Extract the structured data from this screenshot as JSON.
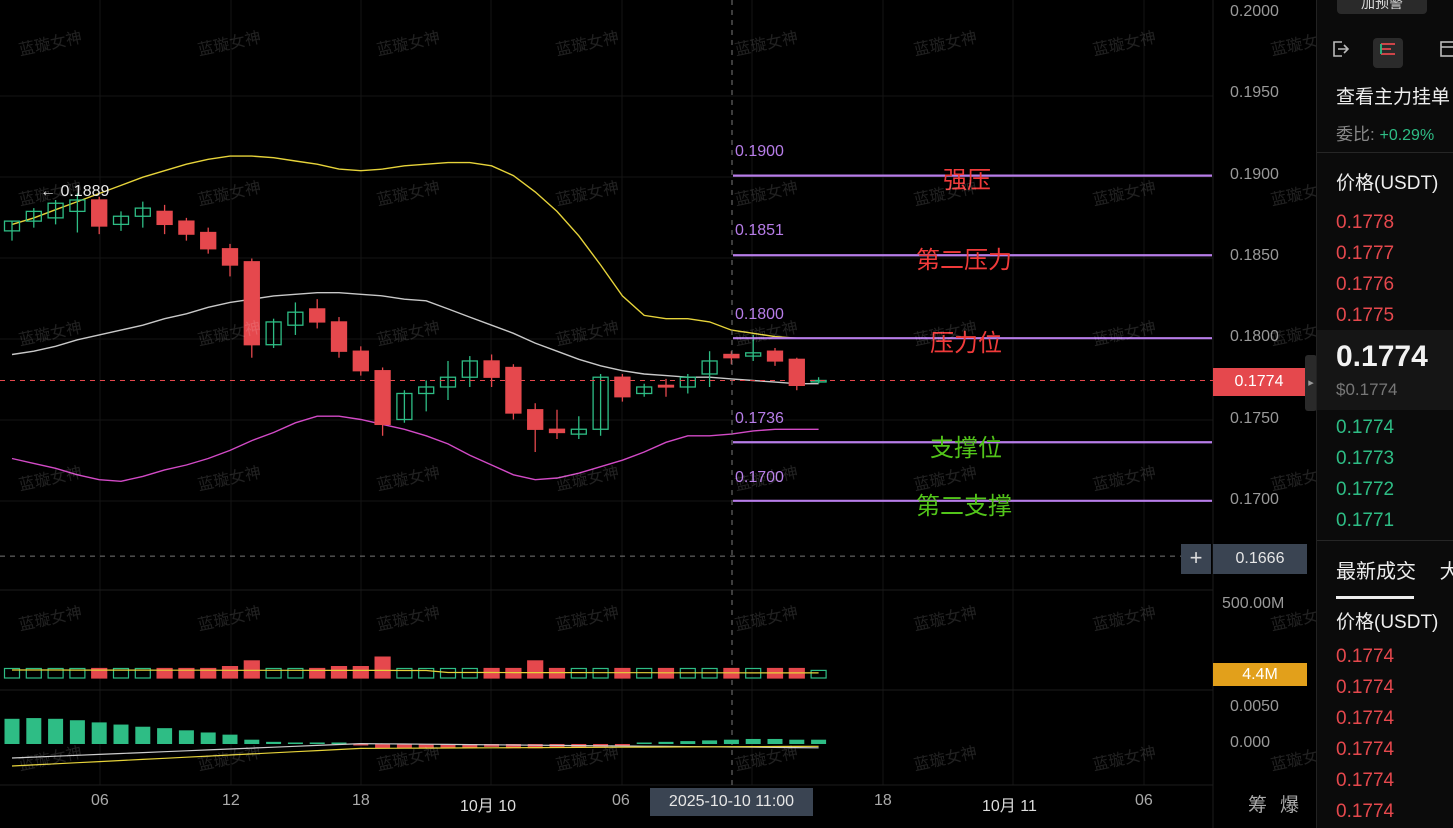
{
  "watermark": "蓝璇女神",
  "right_panel": {
    "top_button": "加预警",
    "icons": [
      "exit-icon",
      "orderbook-icon",
      "layout-icon"
    ],
    "title": "查看主力挂单",
    "ratio_label": "委比:",
    "ratio_value": "+0.29%",
    "price_header": "价格(USDT)",
    "asks": [
      "0.1778",
      "0.1777",
      "0.1776",
      "0.1775"
    ],
    "last_price": "0.1774",
    "last_price_usd": "$0.1774",
    "bids": [
      "0.1774",
      "0.1773",
      "0.1772",
      "0.1771"
    ],
    "tab_latest": "最新成交",
    "tab_more": "大",
    "trades_header": "价格(USDT)",
    "trades": [
      "0.1774",
      "0.1774",
      "0.1774",
      "0.1774",
      "0.1774",
      "0.1774"
    ]
  },
  "axes": {
    "price_ticks": [
      "0.2000",
      "0.1950",
      "0.1900",
      "0.1850",
      "0.1800",
      "0.1750",
      "0.1700"
    ],
    "current_price": "0.1774",
    "crosshair_price": "0.1666",
    "volume_max": "500.00M",
    "volume_value": "4.4M",
    "macd_ticks": [
      "0.0050",
      "0.000"
    ],
    "x_ticks": [
      "06",
      "12",
      "18",
      "10月 10",
      "06",
      "18",
      "10月 11",
      "06"
    ],
    "crosshair_time": "2025-10-10 11:00",
    "bottom_right": [
      "筹",
      "爆"
    ]
  },
  "annotations": {
    "high_marker": "← 0.1889",
    "levels": [
      {
        "price": "0.1900",
        "name": "强压",
        "kind": "resistance"
      },
      {
        "price": "0.1851",
        "name": "第二压力",
        "kind": "resistance"
      },
      {
        "price": "0.1800",
        "name": "压力位",
        "kind": "resistance"
      },
      {
        "price": "0.1736",
        "name": "支撑位",
        "kind": "support"
      },
      {
        "price": "0.1700",
        "name": "第二支撑",
        "kind": "support"
      }
    ]
  },
  "colors": {
    "up": "#2ebd85",
    "down": "#e5484d",
    "level_line": "#b77de8",
    "resistance_text": "#f03a3a",
    "support_text": "#52c41a",
    "boll_upper": "#e6d33a",
    "boll_mid": "#c8c8c8",
    "boll_lower": "#d24ac6",
    "price_tag": "#e5484d",
    "volume_tag": "#e2a01b"
  },
  "chart_data": {
    "type": "candlestick",
    "candles": [
      {
        "o": 0.1866,
        "h": 0.1872,
        "c": 0.1872,
        "l": 0.186
      },
      {
        "o": 0.1872,
        "h": 0.188,
        "c": 0.1878,
        "l": 0.1868
      },
      {
        "o": 0.1874,
        "h": 0.1885,
        "c": 0.1883,
        "l": 0.187
      },
      {
        "o": 0.1878,
        "h": 0.1889,
        "c": 0.1885,
        "l": 0.1865
      },
      {
        "o": 0.1885,
        "h": 0.1887,
        "c": 0.1869,
        "l": 0.1864
      },
      {
        "o": 0.187,
        "h": 0.1878,
        "c": 0.1875,
        "l": 0.1866
      },
      {
        "o": 0.1875,
        "h": 0.1884,
        "c": 0.188,
        "l": 0.1868
      },
      {
        "o": 0.1878,
        "h": 0.1882,
        "c": 0.187,
        "l": 0.1864
      },
      {
        "o": 0.1872,
        "h": 0.1874,
        "c": 0.1864,
        "l": 0.186
      },
      {
        "o": 0.1865,
        "h": 0.1868,
        "c": 0.1855,
        "l": 0.1852
      },
      {
        "o": 0.1855,
        "h": 0.1858,
        "c": 0.1845,
        "l": 0.1838
      },
      {
        "o": 0.1847,
        "h": 0.1849,
        "c": 0.1796,
        "l": 0.1788
      },
      {
        "o": 0.1796,
        "h": 0.1812,
        "c": 0.181,
        "l": 0.1794
      },
      {
        "o": 0.1808,
        "h": 0.1822,
        "c": 0.1816,
        "l": 0.1802
      },
      {
        "o": 0.1818,
        "h": 0.1824,
        "c": 0.181,
        "l": 0.1806
      },
      {
        "o": 0.181,
        "h": 0.1813,
        "c": 0.1792,
        "l": 0.1788
      },
      {
        "o": 0.1792,
        "h": 0.1795,
        "c": 0.178,
        "l": 0.1777
      },
      {
        "o": 0.178,
        "h": 0.1782,
        "c": 0.1747,
        "l": 0.174
      },
      {
        "o": 0.175,
        "h": 0.1768,
        "c": 0.1766,
        "l": 0.1748
      },
      {
        "o": 0.1766,
        "h": 0.1774,
        "c": 0.177,
        "l": 0.1755
      },
      {
        "o": 0.177,
        "h": 0.1786,
        "c": 0.1776,
        "l": 0.1762
      },
      {
        "o": 0.1776,
        "h": 0.1789,
        "c": 0.1786,
        "l": 0.177
      },
      {
        "o": 0.1786,
        "h": 0.179,
        "c": 0.1776,
        "l": 0.177
      },
      {
        "o": 0.1782,
        "h": 0.1784,
        "c": 0.1754,
        "l": 0.175
      },
      {
        "o": 0.1756,
        "h": 0.176,
        "c": 0.1744,
        "l": 0.173
      },
      {
        "o": 0.1744,
        "h": 0.1756,
        "c": 0.1742,
        "l": 0.1738
      },
      {
        "o": 0.1741,
        "h": 0.1752,
        "c": 0.1744,
        "l": 0.1738
      },
      {
        "o": 0.1744,
        "h": 0.1778,
        "c": 0.1776,
        "l": 0.174
      },
      {
        "o": 0.1776,
        "h": 0.1778,
        "c": 0.1764,
        "l": 0.1761
      },
      {
        "o": 0.1766,
        "h": 0.1772,
        "c": 0.177,
        "l": 0.1764
      },
      {
        "o": 0.1771,
        "h": 0.1775,
        "c": 0.177,
        "l": 0.1764
      },
      {
        "o": 0.177,
        "h": 0.1778,
        "c": 0.1776,
        "l": 0.1766
      },
      {
        "o": 0.1778,
        "h": 0.1792,
        "c": 0.1786,
        "l": 0.177
      },
      {
        "o": 0.179,
        "h": 0.1792,
        "c": 0.1788,
        "l": 0.1784
      },
      {
        "o": 0.1789,
        "h": 0.1802,
        "c": 0.1791,
        "l": 0.1786
      },
      {
        "o": 0.1792,
        "h": 0.1794,
        "c": 0.1786,
        "l": 0.1783
      },
      {
        "o": 0.1787,
        "h": 0.1788,
        "c": 0.1771,
        "l": 0.1768
      },
      {
        "o": 0.1774,
        "h": 0.1776,
        "c": 0.1774,
        "l": 0.1772
      }
    ],
    "boll_upper": [
      0.187,
      0.1874,
      0.1879,
      0.1884,
      0.1889,
      0.1894,
      0.1899,
      0.1903,
      0.1907,
      0.191,
      0.1912,
      0.1912,
      0.1911,
      0.1909,
      0.1907,
      0.1904,
      0.1903,
      0.1904,
      0.1906,
      0.1907,
      0.1908,
      0.1908,
      0.1906,
      0.19,
      0.189,
      0.1878,
      0.1863,
      0.1845,
      0.1826,
      0.1814,
      0.1812,
      0.1812,
      0.181,
      0.1805,
      0.1803,
      0.1801,
      0.18,
      0.18
    ],
    "boll_mid": [
      0.179,
      0.1792,
      0.1795,
      0.1799,
      0.1802,
      0.1805,
      0.1808,
      0.1812,
      0.1815,
      0.1819,
      0.1822,
      0.1824,
      0.1826,
      0.1827,
      0.1828,
      0.1828,
      0.1827,
      0.1826,
      0.1824,
      0.1823,
      0.1818,
      0.1813,
      0.1808,
      0.1803,
      0.1797,
      0.1792,
      0.1787,
      0.1783,
      0.178,
      0.1778,
      0.1777,
      0.1776,
      0.1776,
      0.1775,
      0.1774,
      0.1773,
      0.1772,
      0.1772
    ],
    "boll_lower": [
      0.1726,
      0.1723,
      0.172,
      0.1716,
      0.1713,
      0.1712,
      0.1715,
      0.1719,
      0.1722,
      0.1726,
      0.1731,
      0.1737,
      0.1742,
      0.1748,
      0.1752,
      0.1752,
      0.175,
      0.1747,
      0.1744,
      0.174,
      0.1735,
      0.1728,
      0.1722,
      0.1716,
      0.1713,
      0.1714,
      0.1717,
      0.1721,
      0.1725,
      0.173,
      0.1736,
      0.174,
      0.174,
      0.1741,
      0.1743,
      0.1744,
      0.1744,
      0.1744
    ],
    "volume": [
      5,
      5,
      5,
      5,
      5,
      5,
      5,
      5,
      5,
      5,
      6,
      9,
      5,
      5,
      5,
      6,
      6,
      11,
      5,
      5,
      5,
      5,
      5,
      5,
      9,
      5,
      5,
      5,
      5,
      5,
      5,
      5,
      5,
      5,
      5,
      5,
      5,
      4
    ],
    "macd_hist": [
      0.0035,
      0.0036,
      0.0035,
      0.0033,
      0.003,
      0.0027,
      0.0024,
      0.0022,
      0.0019,
      0.0016,
      0.0013,
      0.0006,
      0.0003,
      0.0002,
      0.0001,
      0.0,
      -0.0001,
      -0.0006,
      -0.0006,
      -0.0006,
      -0.0005,
      -0.0005,
      -0.0004,
      -0.0006,
      -0.0006,
      -0.0005,
      -0.0005,
      -0.0004,
      -0.0002,
      0.0002,
      0.0003,
      0.0004,
      0.0005,
      0.0006,
      0.0007,
      0.0007,
      0.0006,
      0.0006
    ],
    "y_range": [
      0.165,
      0.2005
    ]
  }
}
